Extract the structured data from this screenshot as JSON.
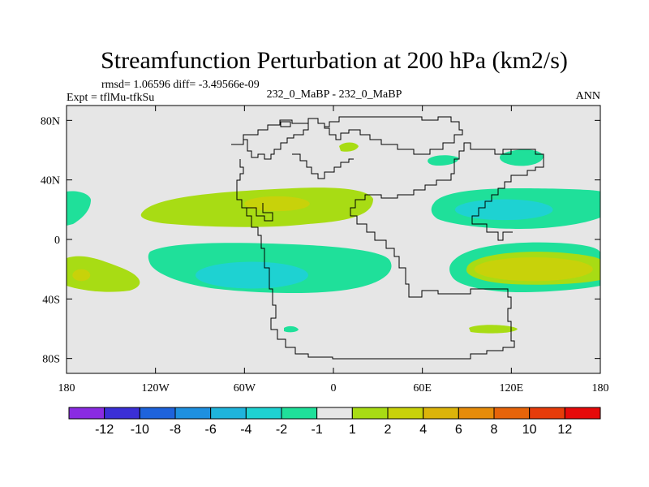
{
  "chart_data": {
    "type": "contour-map",
    "title": "Streamfunction Perturbation at 200 hPa (km2/s)",
    "stats_line": "rmsd= 1.06596 diff= -3.49566e-09",
    "left_label": "Expt = tflMu-tfkSu",
    "center_label": "232_0_MaBP - 232_0_MaBP",
    "right_label": "ANN",
    "xlim": [
      -180,
      180
    ],
    "ylim": [
      -90,
      90
    ],
    "x_ticks": [
      {
        "value": -180,
        "label": "180"
      },
      {
        "value": -120,
        "label": "120W"
      },
      {
        "value": -60,
        "label": "60W"
      },
      {
        "value": 0,
        "label": "0"
      },
      {
        "value": 60,
        "label": "60E"
      },
      {
        "value": 120,
        "label": "120E"
      },
      {
        "value": 180,
        "label": "180"
      }
    ],
    "y_ticks": [
      {
        "value": 80,
        "label": "80N"
      },
      {
        "value": 40,
        "label": "40N"
      },
      {
        "value": 0,
        "label": "0"
      },
      {
        "value": -40,
        "label": "40S"
      },
      {
        "value": -80,
        "label": "80S"
      }
    ],
    "colorbar": {
      "colors": [
        "#8a2be2",
        "#3b2fd6",
        "#1e63dc",
        "#1e90e0",
        "#1fb4dc",
        "#1ed2d2",
        "#1fe09a",
        "#e6e6e6",
        "#a8dc14",
        "#c8d20a",
        "#dcb40a",
        "#e68c0a",
        "#e6640a",
        "#e63c0a",
        "#e60a0a"
      ],
      "labels": [
        "-12",
        "-10",
        "-8",
        "-6",
        "-4",
        "-2",
        "-1",
        "1",
        "2",
        "4",
        "6",
        "8",
        "10",
        "12"
      ]
    },
    "fields": [
      {
        "name": "low-40S",
        "level": -4,
        "center": [
          -55,
          -24
        ],
        "radius": [
          38,
          9
        ],
        "color": "#1ed2d2"
      },
      {
        "name": "low-20N-asia",
        "level": -4,
        "center": [
          115,
          20
        ],
        "radius": [
          33,
          7
        ],
        "color": "#1ed2d2"
      },
      {
        "name": "high-20N-atlantic",
        "level": 4,
        "center": [
          -38,
          24
        ],
        "radius": [
          22,
          5
        ],
        "color": "#c8d20a"
      },
      {
        "name": "high-25S-pacific",
        "level": 4,
        "center": [
          135,
          -20
        ],
        "radius": [
          40,
          8
        ],
        "color": "#c8d20a"
      },
      {
        "name": "high-25S-westpac",
        "level": 4,
        "center": [
          -170,
          -24
        ],
        "radius": [
          6,
          4
        ],
        "color": "#c8d20a"
      }
    ]
  }
}
